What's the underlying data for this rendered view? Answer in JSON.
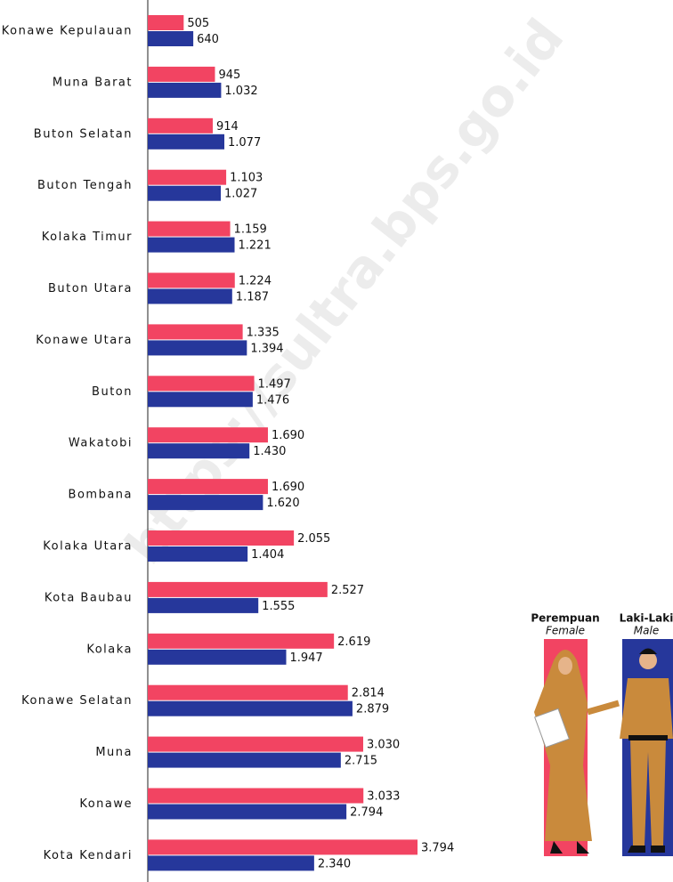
{
  "chart_data": {
    "type": "hbar",
    "watermark": "https://sultra.bps.go.id",
    "categories": [
      "Konawe Kepulauan",
      "Muna Barat",
      "Buton Selatan",
      "Buton Tengah",
      "Kolaka Timur",
      "Buton Utara",
      "Konawe Utara",
      "Buton",
      "Wakatobi",
      "Bombana",
      "Kolaka Utara",
      "Kota Baubau",
      "Kolaka",
      "Konawe Selatan",
      "Muna",
      "Konawe",
      "Kota Kendari"
    ],
    "series": [
      {
        "name": "Perempuan",
        "name_en": "Female",
        "color": "#f24462",
        "values": [
          505,
          945,
          914,
          1103,
          1159,
          1224,
          1335,
          1497,
          1690,
          1690,
          2055,
          2527,
          2619,
          2814,
          3030,
          3033,
          3794
        ],
        "value_labels": [
          "505",
          "945",
          "914",
          "1.103",
          "1.159",
          "1.224",
          "1.335",
          "1.497",
          "1.690",
          "1.690",
          "2.055",
          "2.527",
          "2.619",
          "2.814",
          "3.030",
          "3.033",
          "3.794"
        ]
      },
      {
        "name": "Laki-Laki",
        "name_en": "Male",
        "color": "#26379b",
        "values": [
          640,
          1032,
          1077,
          1027,
          1221,
          1187,
          1394,
          1476,
          1430,
          1620,
          1404,
          1555,
          1947,
          2879,
          2715,
          2794,
          2340
        ],
        "value_labels": [
          "640",
          "1.032",
          "1.077",
          "1.027",
          "1.221",
          "1.187",
          "1.394",
          "1.476",
          "1.430",
          "1.620",
          "1.404",
          "1.555",
          "1.947",
          "2.879",
          "2.715",
          "2.794",
          "2.340"
        ]
      }
    ]
  }
}
